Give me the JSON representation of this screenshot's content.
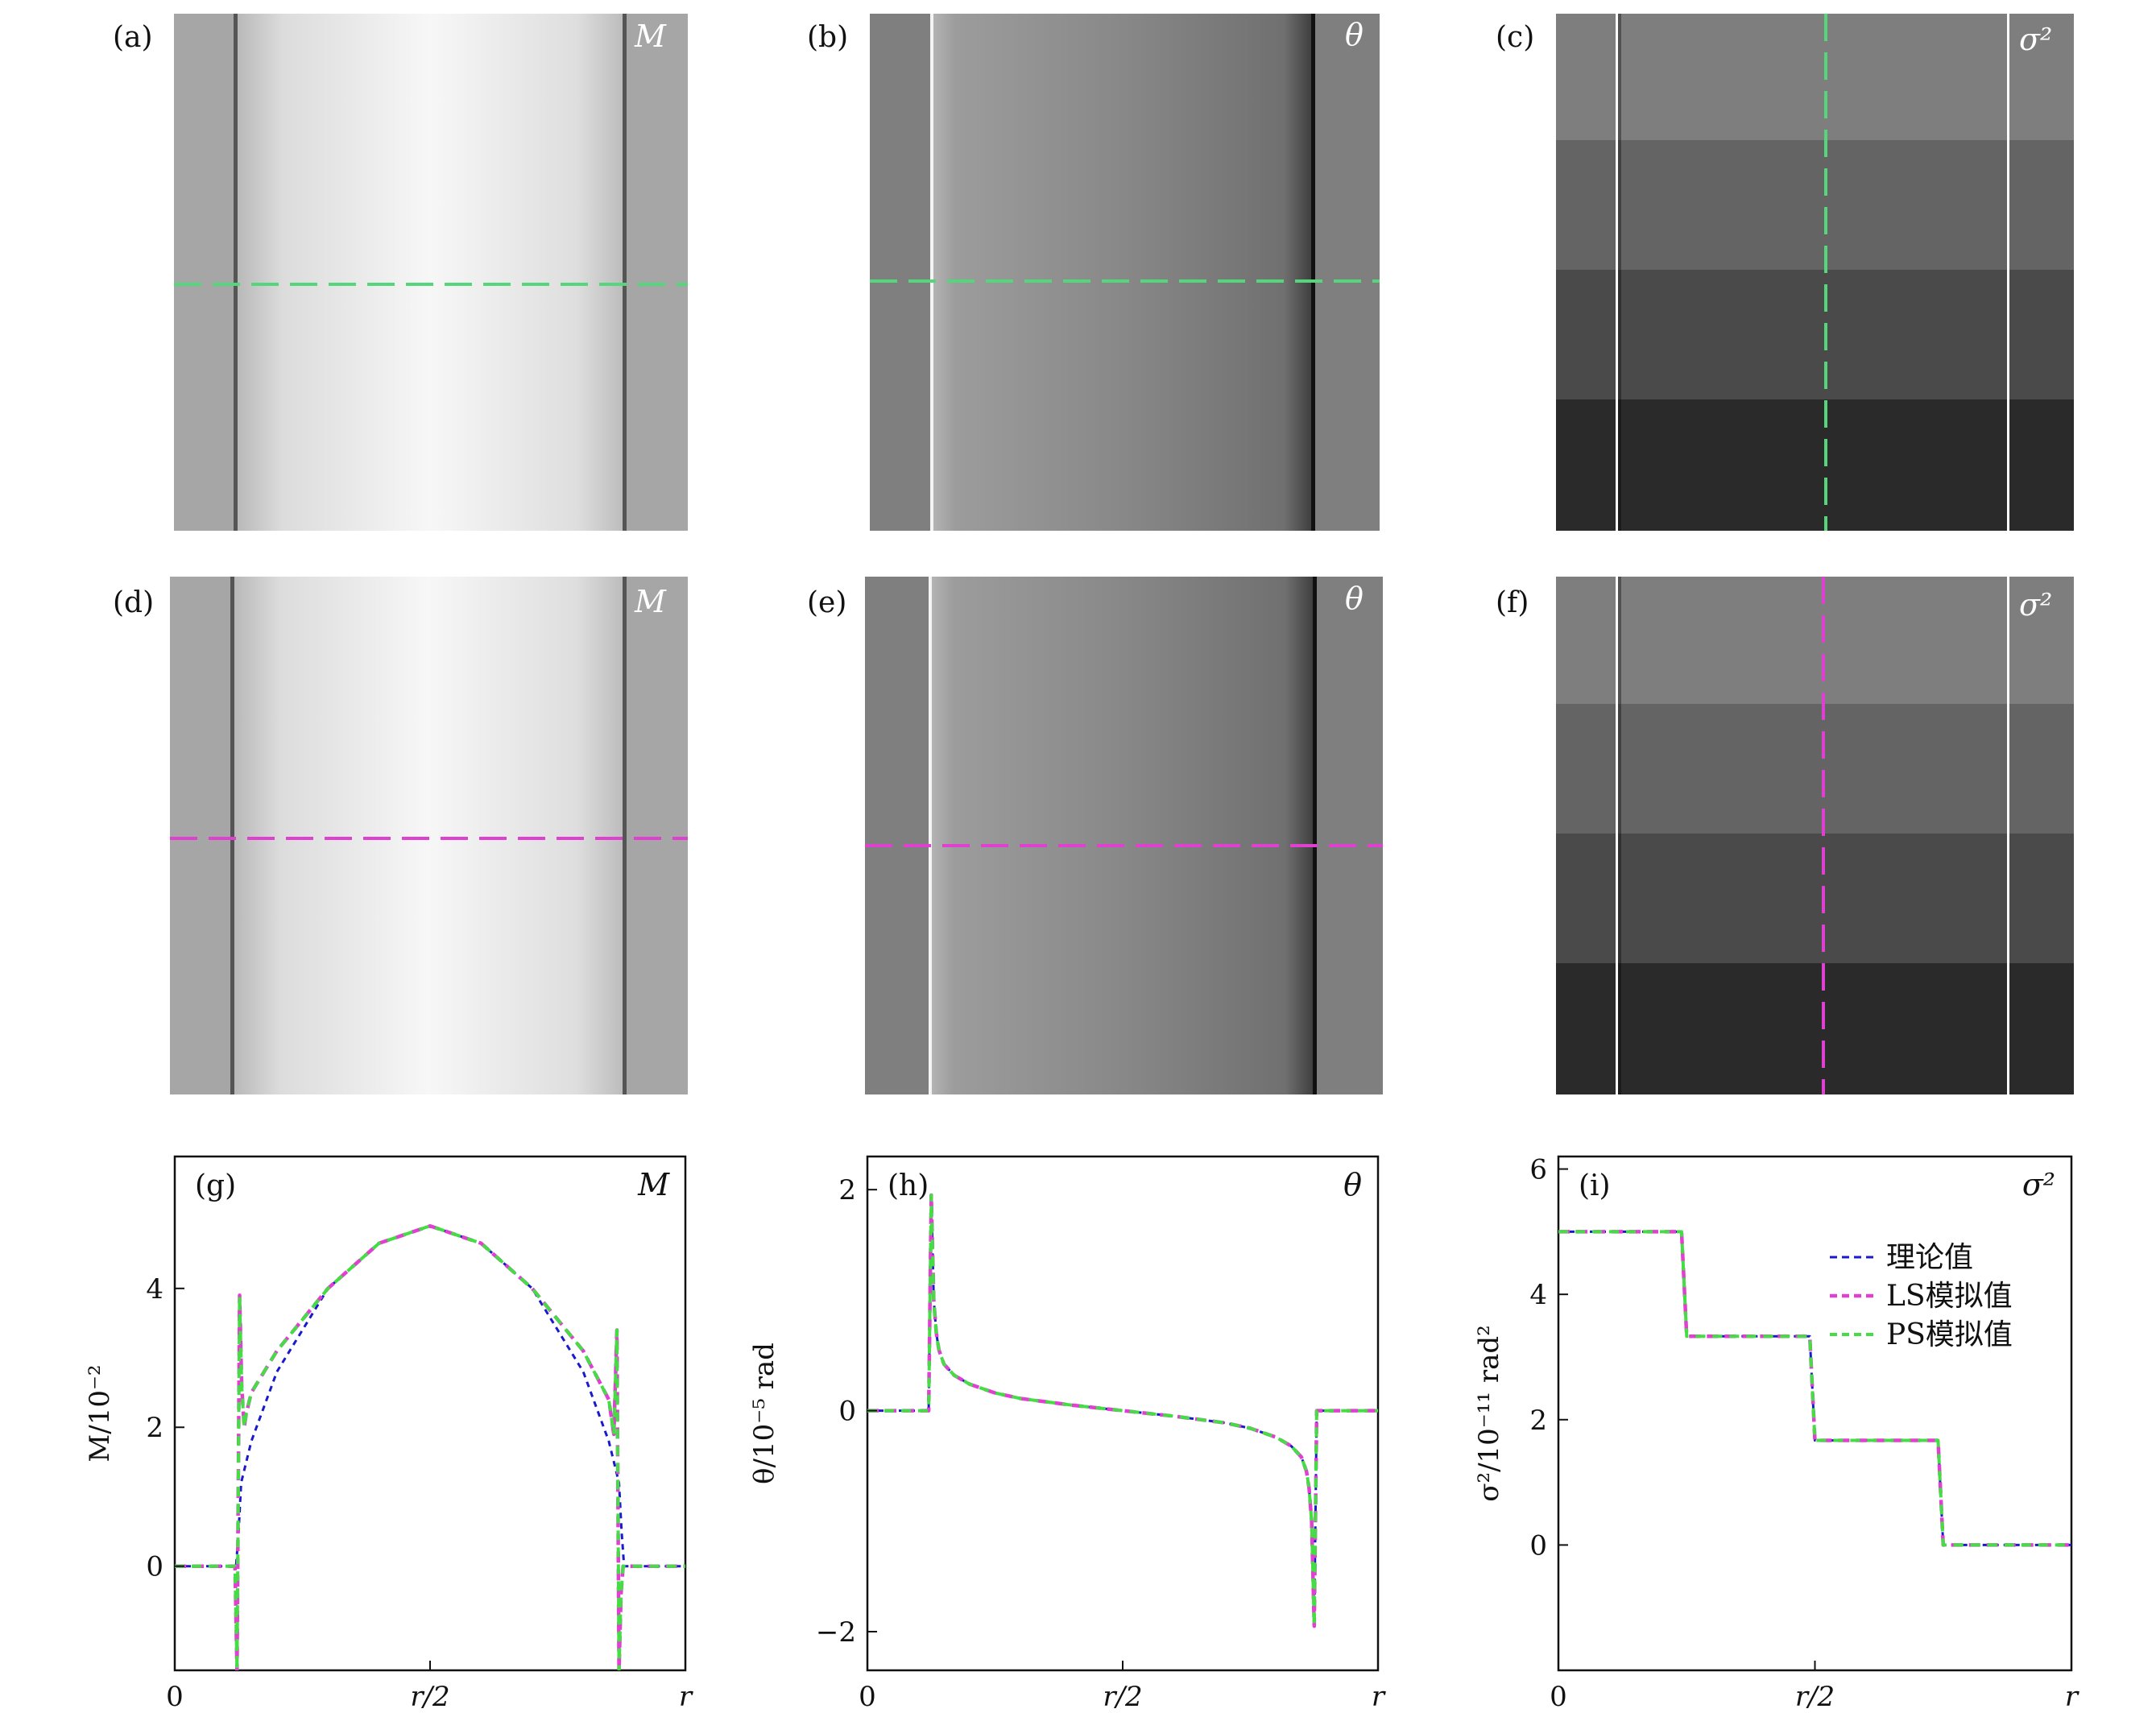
{
  "panels": {
    "a": {
      "label": "(a)",
      "quantity": "M"
    },
    "b": {
      "label": "(b)",
      "quantity": "θ"
    },
    "c": {
      "label": "(c)",
      "quantity": "σ²"
    },
    "d": {
      "label": "(d)",
      "quantity": "M"
    },
    "e": {
      "label": "(e)",
      "quantity": "θ"
    },
    "f": {
      "label": "(f)",
      "quantity": "σ²"
    }
  },
  "colors": {
    "theory": "#1a1acc",
    "ls": "#e040d0",
    "ps": "#44dd44",
    "guide_green": "#55d67a",
    "guide_magenta": "#e040d0"
  },
  "chart_data": [
    {
      "type": "line",
      "panel_label": "(g)",
      "corner_label": "M",
      "ylabel": "M/10⁻²",
      "xticks": [
        "0",
        "r/2",
        "r"
      ],
      "yticks": [
        0,
        2,
        4
      ],
      "xlim": [
        0,
        1
      ],
      "ylim": [
        -1.5,
        5.9
      ],
      "series": [
        {
          "key": "theory",
          "x": [
            0,
            0.12,
            0.125,
            0.13,
            0.15,
            0.2,
            0.3,
            0.4,
            0.5,
            0.6,
            0.7,
            0.8,
            0.85,
            0.87,
            0.875,
            0.88,
            1
          ],
          "y": [
            0,
            0,
            0.5,
            1.2,
            1.8,
            2.8,
            4.0,
            4.65,
            4.9,
            4.65,
            4.0,
            2.8,
            1.8,
            1.2,
            0.5,
            0,
            0
          ]
        },
        {
          "key": "ls",
          "x": [
            0,
            0.118,
            0.122,
            0.127,
            0.131,
            0.136,
            0.14,
            0.15,
            0.2,
            0.3,
            0.4,
            0.5,
            0.6,
            0.7,
            0.8,
            0.85,
            0.86,
            0.866,
            0.87,
            0.874,
            0.878,
            0.884,
            1
          ],
          "y": [
            0,
            0,
            -1.5,
            3.9,
            2.6,
            2.0,
            2.2,
            2.5,
            3.1,
            4.0,
            4.65,
            4.9,
            4.65,
            4.0,
            3.1,
            2.4,
            1.9,
            3.4,
            -1.5,
            -0.4,
            0,
            0,
            0
          ]
        },
        {
          "key": "ps",
          "x": [
            0,
            0.118,
            0.122,
            0.127,
            0.131,
            0.136,
            0.14,
            0.15,
            0.2,
            0.3,
            0.4,
            0.5,
            0.6,
            0.7,
            0.8,
            0.85,
            0.86,
            0.866,
            0.87,
            0.874,
            0.878,
            0.884,
            1
          ],
          "y": [
            0,
            0,
            -1.5,
            3.9,
            2.6,
            2.0,
            2.2,
            2.5,
            3.1,
            4.0,
            4.65,
            4.9,
            4.65,
            4.0,
            3.1,
            2.4,
            1.9,
            3.4,
            -1.5,
            -0.4,
            0,
            0,
            0
          ]
        }
      ]
    },
    {
      "type": "line",
      "panel_label": "(h)",
      "corner_label": "θ",
      "ylabel": "θ/10⁻⁵ rad",
      "xticks": [
        "0",
        "r/2",
        "r"
      ],
      "yticks": [
        -2,
        0,
        2
      ],
      "xlim": [
        0,
        1
      ],
      "ylim": [
        -2.35,
        2.3
      ],
      "series": [
        {
          "key": "theory",
          "x": [
            0,
            0.12,
            0.125,
            0.13,
            0.135,
            0.14,
            0.15,
            0.17,
            0.2,
            0.25,
            0.3,
            0.4,
            0.5,
            0.6,
            0.7,
            0.75,
            0.8,
            0.83,
            0.85,
            0.86,
            0.865,
            0.87,
            0.875,
            0.88,
            1
          ],
          "y": [
            0,
            0,
            1.95,
            1.0,
            0.7,
            0.55,
            0.42,
            0.32,
            0.24,
            0.16,
            0.11,
            0.05,
            0,
            -0.05,
            -0.11,
            -0.16,
            -0.24,
            -0.32,
            -0.42,
            -0.55,
            -0.7,
            -1.0,
            -1.95,
            0,
            0
          ]
        },
        {
          "key": "ls",
          "x": [
            0,
            0.12,
            0.125,
            0.13,
            0.135,
            0.14,
            0.15,
            0.17,
            0.2,
            0.25,
            0.3,
            0.4,
            0.5,
            0.6,
            0.7,
            0.75,
            0.8,
            0.83,
            0.85,
            0.86,
            0.865,
            0.87,
            0.875,
            0.88,
            1
          ],
          "y": [
            0,
            0,
            1.95,
            1.0,
            0.7,
            0.55,
            0.42,
            0.32,
            0.24,
            0.16,
            0.11,
            0.05,
            0,
            -0.05,
            -0.11,
            -0.16,
            -0.24,
            -0.32,
            -0.42,
            -0.55,
            -0.7,
            -1.0,
            -1.95,
            0,
            0
          ]
        },
        {
          "key": "ps",
          "x": [
            0,
            0.12,
            0.125,
            0.13,
            0.135,
            0.14,
            0.15,
            0.17,
            0.2,
            0.25,
            0.3,
            0.4,
            0.5,
            0.6,
            0.7,
            0.75,
            0.8,
            0.83,
            0.85,
            0.86,
            0.865,
            0.87,
            0.875,
            0.88,
            1
          ],
          "y": [
            0,
            0,
            1.95,
            1.0,
            0.7,
            0.55,
            0.42,
            0.32,
            0.24,
            0.16,
            0.11,
            0.05,
            0,
            -0.05,
            -0.11,
            -0.16,
            -0.24,
            -0.32,
            -0.42,
            -0.55,
            -0.7,
            -1.0,
            -1.95,
            0,
            0
          ]
        }
      ]
    },
    {
      "type": "line",
      "panel_label": "(i)",
      "corner_label": "σ²",
      "ylabel": "σ²/10⁻¹¹ rad²",
      "xticks": [
        "0",
        "r/2",
        "r"
      ],
      "yticks": [
        0,
        2,
        4,
        6
      ],
      "xlim": [
        0,
        1
      ],
      "ylim": [
        -2.0,
        6.2
      ],
      "legend": {
        "position": "top-right",
        "entries": [
          {
            "key": "theory",
            "label": "理论值"
          },
          {
            "key": "ls",
            "label": "LS模拟值"
          },
          {
            "key": "ps",
            "label": "PS模拟值"
          }
        ]
      },
      "series": [
        {
          "key": "theory",
          "x": [
            0,
            0.24,
            0.25,
            0.49,
            0.5,
            0.74,
            0.75,
            1
          ],
          "y": [
            5.0,
            5.0,
            3.33,
            3.33,
            1.67,
            1.67,
            0,
            0
          ]
        },
        {
          "key": "ls",
          "x": [
            0,
            0.24,
            0.25,
            0.49,
            0.5,
            0.74,
            0.75,
            1
          ],
          "y": [
            5.0,
            5.0,
            3.33,
            3.33,
            1.67,
            1.67,
            0,
            0
          ]
        },
        {
          "key": "ps",
          "x": [
            0,
            0.24,
            0.25,
            0.49,
            0.5,
            0.74,
            0.75,
            1
          ],
          "y": [
            5.0,
            5.0,
            3.33,
            3.33,
            1.67,
            1.67,
            0,
            0
          ]
        }
      ]
    }
  ]
}
